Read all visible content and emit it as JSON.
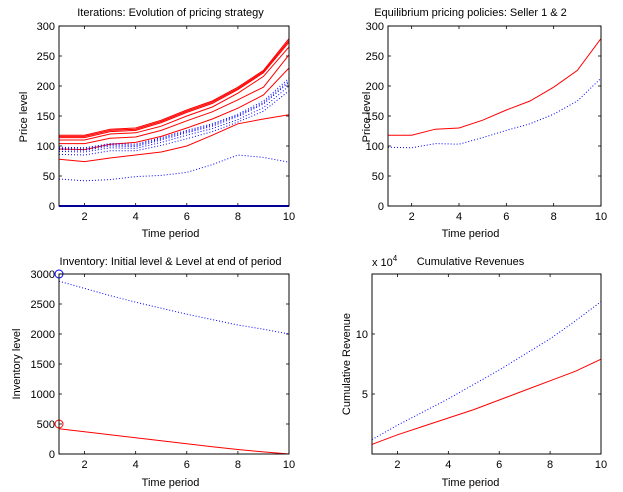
{
  "chart_data": [
    {
      "type": "line",
      "title": "Iterations: Evolution of pricing strategy",
      "xlabel": "Time period",
      "ylabel": "Price level",
      "xlim": [
        1,
        10
      ],
      "ylim": [
        0,
        300
      ],
      "xticks": [
        2,
        4,
        6,
        8,
        10
      ],
      "yticks": [
        0,
        50,
        100,
        150,
        200,
        250,
        300
      ],
      "x": [
        1,
        2,
        3,
        4,
        5,
        6,
        7,
        8,
        9,
        10
      ],
      "series": [
        {
          "color": "#ff0000",
          "style": "solid",
          "values": [
            118,
            118,
            128,
            130,
            143,
            160,
            175,
            198,
            226,
            279
          ]
        },
        {
          "color": "#ff0000",
          "style": "solid",
          "values": [
            116,
            116,
            126,
            128,
            141,
            158,
            173,
            196,
            224,
            276
          ]
        },
        {
          "color": "#ff0000",
          "style": "solid",
          "values": [
            114,
            114,
            124,
            126,
            139,
            156,
            171,
            194,
            222,
            273
          ]
        },
        {
          "color": "#ff0000",
          "style": "solid",
          "values": [
            110,
            110,
            120,
            122,
            133,
            150,
            165,
            188,
            216,
            265
          ]
        },
        {
          "color": "#ff0000",
          "style": "solid",
          "values": [
            104,
            104,
            113,
            115,
            126,
            142,
            157,
            177,
            198,
            252
          ]
        },
        {
          "color": "#ff0000",
          "style": "solid",
          "values": [
            95,
            94,
            103,
            106,
            116,
            130,
            145,
            163,
            185,
            230
          ]
        },
        {
          "color": "#ff0000",
          "style": "solid",
          "values": [
            78,
            74,
            80,
            85,
            90,
            100,
            118,
            137,
            145,
            152
          ]
        },
        {
          "color": "#0000ff",
          "style": "dotted",
          "values": [
            98,
            97,
            104,
            103,
            114,
            126,
            137,
            153,
            175,
            213
          ]
        },
        {
          "color": "#0000ff",
          "style": "dotted",
          "values": [
            96,
            95,
            102,
            101,
            112,
            124,
            135,
            151,
            172,
            209
          ]
        },
        {
          "color": "#0000ff",
          "style": "dotted",
          "values": [
            94,
            93,
            100,
            99,
            110,
            122,
            133,
            149,
            170,
            206
          ]
        },
        {
          "color": "#0000ff",
          "style": "dotted",
          "values": [
            91,
            90,
            97,
            96,
            106,
            118,
            129,
            144,
            164,
            200
          ]
        },
        {
          "color": "#0000ff",
          "style": "dotted",
          "values": [
            86,
            85,
            92,
            92,
            101,
            112,
            124,
            140,
            158,
            192
          ]
        },
        {
          "color": "#0000ff",
          "style": "dotted",
          "values": [
            45,
            42,
            44,
            49,
            51,
            56,
            69,
            85,
            81,
            73
          ]
        },
        {
          "color": "#0000ff",
          "style": "solid",
          "values": [
            0,
            0,
            0,
            0,
            0,
            0,
            0,
            0,
            0,
            0
          ]
        }
      ]
    },
    {
      "type": "line",
      "title": "Equilibrium pricing policies: Seller 1 & 2",
      "xlabel": "Time period",
      "ylabel": "Price level",
      "xlim": [
        1,
        10
      ],
      "ylim": [
        0,
        300
      ],
      "xticks": [
        2,
        4,
        6,
        8,
        10
      ],
      "yticks": [
        0,
        50,
        100,
        150,
        200,
        250,
        300
      ],
      "x": [
        1,
        2,
        3,
        4,
        5,
        6,
        7,
        8,
        9,
        10
      ],
      "series": [
        {
          "color": "#ff0000",
          "style": "solid",
          "values": [
            118,
            118,
            128,
            130,
            143,
            160,
            175,
            198,
            226,
            279
          ]
        },
        {
          "color": "#0000ff",
          "style": "dotted",
          "values": [
            98,
            97,
            104,
            103,
            114,
            126,
            137,
            153,
            175,
            213
          ]
        }
      ]
    },
    {
      "type": "line",
      "title": "Inventory: Initial level & Level at end of period",
      "xlabel": "Time period",
      "ylabel": "Inventory level",
      "xlim": [
        1,
        10
      ],
      "ylim": [
        0,
        3000
      ],
      "xticks": [
        2,
        4,
        6,
        8,
        10
      ],
      "yticks": [
        0,
        500,
        1000,
        1500,
        2000,
        2500,
        3000
      ],
      "x": [
        1,
        2,
        3,
        4,
        5,
        6,
        7,
        8,
        9,
        10
      ],
      "series": [
        {
          "color": "#0000ff",
          "style": "dotted",
          "values": [
            2880,
            2760,
            2640,
            2530,
            2430,
            2330,
            2240,
            2150,
            2080,
            2000
          ]
        },
        {
          "color": "#ff0000",
          "style": "solid",
          "values": [
            420,
            370,
            320,
            270,
            220,
            170,
            120,
            75,
            35,
            0
          ]
        }
      ],
      "markers": [
        {
          "x": 1,
          "y": 3000,
          "color": "#0000ff"
        },
        {
          "x": 1,
          "y": 500,
          "color": "#ff0000"
        }
      ]
    },
    {
      "type": "line",
      "title": "Cumulative Revenues",
      "xlabel": "Time period",
      "ylabel": "Cumulative Revenue",
      "exponent_label": "x 10",
      "exponent_power": "4",
      "xlim": [
        1,
        10
      ],
      "ylim": [
        0,
        15
      ],
      "xticks": [
        2,
        4,
        6,
        8,
        10
      ],
      "yticks": [
        5,
        10
      ],
      "x": [
        1,
        2,
        3,
        4,
        5,
        6,
        7,
        8,
        9,
        10
      ],
      "series": [
        {
          "color": "#0000ff",
          "style": "dotted",
          "values": [
            1.2,
            2.4,
            3.5,
            4.6,
            5.8,
            7.0,
            8.3,
            9.6,
            11.1,
            12.7
          ]
        },
        {
          "color": "#ff0000",
          "style": "solid",
          "values": [
            0.8,
            1.6,
            2.3,
            3.0,
            3.7,
            4.5,
            5.3,
            6.1,
            6.9,
            7.9
          ]
        }
      ]
    }
  ]
}
